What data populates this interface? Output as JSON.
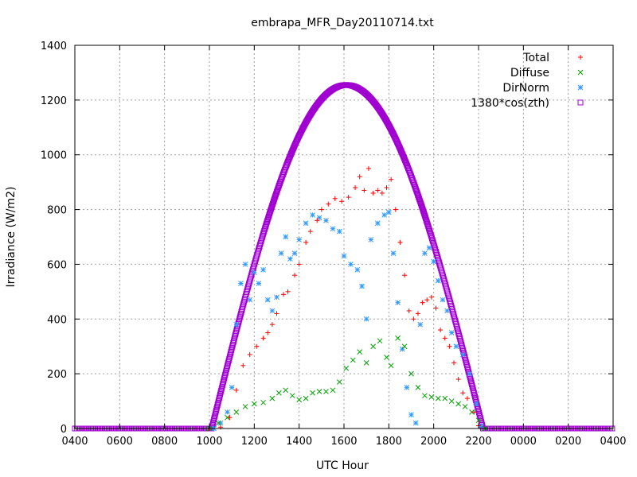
{
  "chart_data": {
    "type": "scatter",
    "title": "embrapa_MFR_Day20110714.txt",
    "xlabel": "UTC Hour",
    "ylabel": "Irradiance (W/m2)",
    "xlim": [
      4,
      28
    ],
    "ylim": [
      0,
      1400
    ],
    "x_ticks": [
      4,
      6,
      8,
      10,
      12,
      14,
      16,
      18,
      20,
      22,
      24,
      26,
      28
    ],
    "x_tick_labels": [
      "0400",
      "0600",
      "0800",
      "1000",
      "1200",
      "1400",
      "1600",
      "1800",
      "2000",
      "2200",
      "0000",
      "0200",
      "0400"
    ],
    "y_ticks": [
      0,
      200,
      400,
      600,
      800,
      1000,
      1200,
      1400
    ],
    "y_tick_labels": [
      "0",
      "200",
      "400",
      "600",
      "800",
      "1000",
      "1200",
      "1400"
    ],
    "grid": true,
    "legend_position": "top-right",
    "series": [
      {
        "name": "Total",
        "color": "#ff0000",
        "marker": "plus",
        "points": [
          [
            10.0,
            0
          ],
          [
            10.5,
            5
          ],
          [
            10.9,
            40
          ],
          [
            11.2,
            140
          ],
          [
            11.5,
            230
          ],
          [
            11.8,
            270
          ],
          [
            12.1,
            300
          ],
          [
            12.4,
            330
          ],
          [
            12.6,
            350
          ],
          [
            12.8,
            380
          ],
          [
            13.0,
            420
          ],
          [
            13.3,
            490
          ],
          [
            13.5,
            500
          ],
          [
            13.8,
            560
          ],
          [
            14.0,
            600
          ],
          [
            14.3,
            680
          ],
          [
            14.5,
            720
          ],
          [
            14.8,
            760
          ],
          [
            15.0,
            800
          ],
          [
            15.3,
            820
          ],
          [
            15.6,
            840
          ],
          [
            15.9,
            830
          ],
          [
            16.2,
            845
          ],
          [
            16.5,
            880
          ],
          [
            16.7,
            920
          ],
          [
            16.9,
            870
          ],
          [
            17.1,
            950
          ],
          [
            17.3,
            860
          ],
          [
            17.5,
            870
          ],
          [
            17.7,
            860
          ],
          [
            17.9,
            880
          ],
          [
            18.1,
            910
          ],
          [
            18.3,
            800
          ],
          [
            18.5,
            680
          ],
          [
            18.7,
            560
          ],
          [
            18.9,
            430
          ],
          [
            19.1,
            400
          ],
          [
            19.3,
            420
          ],
          [
            19.5,
            460
          ],
          [
            19.7,
            470
          ],
          [
            19.9,
            480
          ],
          [
            20.1,
            440
          ],
          [
            20.3,
            360
          ],
          [
            20.5,
            330
          ],
          [
            20.7,
            300
          ],
          [
            20.9,
            240
          ],
          [
            21.1,
            180
          ],
          [
            21.3,
            130
          ],
          [
            21.5,
            110
          ],
          [
            21.8,
            60
          ],
          [
            22.0,
            10
          ],
          [
            22.3,
            0
          ]
        ]
      },
      {
        "name": "Diffuse",
        "color": "#00a000",
        "marker": "cross",
        "points": [
          [
            10.0,
            0
          ],
          [
            10.4,
            20
          ],
          [
            10.8,
            40
          ],
          [
            11.2,
            60
          ],
          [
            11.6,
            80
          ],
          [
            12.0,
            90
          ],
          [
            12.4,
            95
          ],
          [
            12.8,
            110
          ],
          [
            13.1,
            130
          ],
          [
            13.4,
            140
          ],
          [
            13.7,
            120
          ],
          [
            14.0,
            105
          ],
          [
            14.3,
            110
          ],
          [
            14.6,
            130
          ],
          [
            14.9,
            135
          ],
          [
            15.2,
            135
          ],
          [
            15.5,
            140
          ],
          [
            15.8,
            170
          ],
          [
            16.1,
            220
          ],
          [
            16.4,
            250
          ],
          [
            16.7,
            280
          ],
          [
            17.0,
            240
          ],
          [
            17.3,
            300
          ],
          [
            17.6,
            320
          ],
          [
            17.9,
            260
          ],
          [
            18.1,
            230
          ],
          [
            18.4,
            330
          ],
          [
            18.7,
            300
          ],
          [
            19.0,
            200
          ],
          [
            19.3,
            150
          ],
          [
            19.6,
            120
          ],
          [
            19.9,
            115
          ],
          [
            20.2,
            110
          ],
          [
            20.5,
            110
          ],
          [
            20.8,
            100
          ],
          [
            21.1,
            90
          ],
          [
            21.4,
            80
          ],
          [
            21.7,
            60
          ],
          [
            22.0,
            30
          ],
          [
            22.3,
            0
          ]
        ]
      },
      {
        "name": "DirNorm",
        "color": "#3399ff",
        "marker": "star",
        "points": [
          [
            10.2,
            0
          ],
          [
            10.5,
            20
          ],
          [
            10.8,
            60
          ],
          [
            11.0,
            150
          ],
          [
            11.2,
            380
          ],
          [
            11.4,
            530
          ],
          [
            11.6,
            600
          ],
          [
            11.8,
            470
          ],
          [
            12.0,
            570
          ],
          [
            12.2,
            530
          ],
          [
            12.4,
            580
          ],
          [
            12.6,
            470
          ],
          [
            12.8,
            430
          ],
          [
            13.0,
            480
          ],
          [
            13.2,
            640
          ],
          [
            13.4,
            700
          ],
          [
            13.6,
            620
          ],
          [
            13.8,
            640
          ],
          [
            14.0,
            690
          ],
          [
            14.3,
            750
          ],
          [
            14.6,
            780
          ],
          [
            14.9,
            770
          ],
          [
            15.2,
            760
          ],
          [
            15.5,
            730
          ],
          [
            15.8,
            720
          ],
          [
            16.0,
            630
          ],
          [
            16.3,
            600
          ],
          [
            16.6,
            580
          ],
          [
            16.8,
            520
          ],
          [
            17.0,
            400
          ],
          [
            17.2,
            690
          ],
          [
            17.5,
            750
          ],
          [
            17.8,
            780
          ],
          [
            18.0,
            790
          ],
          [
            18.2,
            640
          ],
          [
            18.4,
            460
          ],
          [
            18.6,
            290
          ],
          [
            18.8,
            150
          ],
          [
            19.0,
            50
          ],
          [
            19.2,
            20
          ],
          [
            19.4,
            380
          ],
          [
            19.6,
            640
          ],
          [
            19.8,
            660
          ],
          [
            20.0,
            610
          ],
          [
            20.2,
            540
          ],
          [
            20.4,
            470
          ],
          [
            20.6,
            430
          ],
          [
            20.8,
            350
          ],
          [
            21.0,
            300
          ],
          [
            21.3,
            270
          ],
          [
            21.6,
            200
          ],
          [
            21.9,
            90
          ],
          [
            22.1,
            10
          ],
          [
            22.3,
            0
          ]
        ]
      },
      {
        "name": "1380*cos(zth)",
        "color": "#a000d0",
        "marker": "square",
        "function": {
          "peak_x": 16.1,
          "peak_y": 1255,
          "sunrise": 10.1,
          "sunset": 22.2
        }
      }
    ]
  }
}
